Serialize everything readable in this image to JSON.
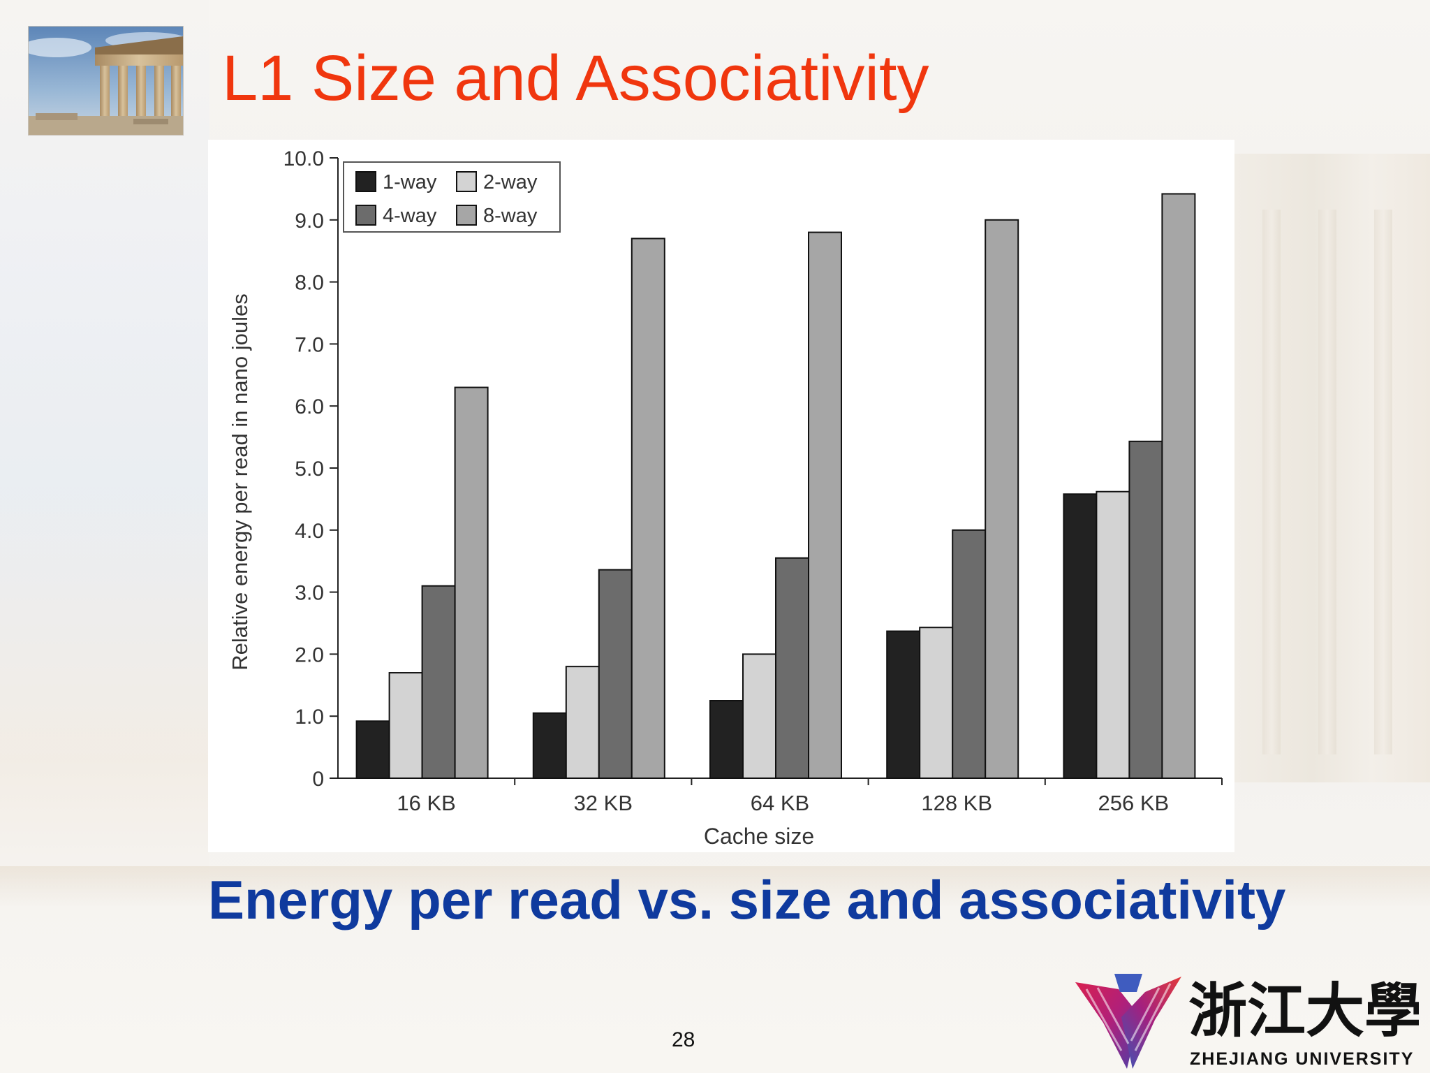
{
  "slide": {
    "title": "L1 Size and Associativity",
    "subtitle": "Energy per read vs. size and associativity",
    "page_number": "28",
    "logo_text": "ZHEJIANG UNIVERSITY",
    "logo_chinese": "浙江大學",
    "title_color": "#f0360e",
    "subtitle_color": "#0f3a9e",
    "thumbnail_icon": "parthenon-photo",
    "logo_icon": "zhejiang-university-emblem"
  },
  "chart_data": {
    "type": "bar",
    "categories": [
      "16 KB",
      "32 KB",
      "64 KB",
      "128 KB",
      "256 KB"
    ],
    "series": [
      {
        "name": "1-way",
        "color": "#222222",
        "values": [
          0.92,
          1.05,
          1.25,
          2.37,
          4.58
        ]
      },
      {
        "name": "2-way",
        "color": "#d3d3d3",
        "values": [
          1.7,
          1.8,
          2.0,
          2.43,
          4.62
        ]
      },
      {
        "name": "4-way",
        "color": "#6c6c6c",
        "values": [
          3.1,
          3.36,
          3.55,
          4.0,
          5.43
        ]
      },
      {
        "name": "8-way",
        "color": "#a6a6a6",
        "values": [
          6.3,
          8.7,
          8.8,
          9.0,
          9.42
        ]
      }
    ],
    "xlabel": "Cache size",
    "ylabel": "Relative energy per read in nano joules",
    "ylim": [
      0,
      10
    ],
    "yticks": [
      "0",
      "1.0",
      "2.0",
      "3.0",
      "4.0",
      "5.0",
      "6.0",
      "7.0",
      "8.0",
      "9.0",
      "10.0"
    ],
    "grid": false,
    "legend_position": "top-left"
  }
}
